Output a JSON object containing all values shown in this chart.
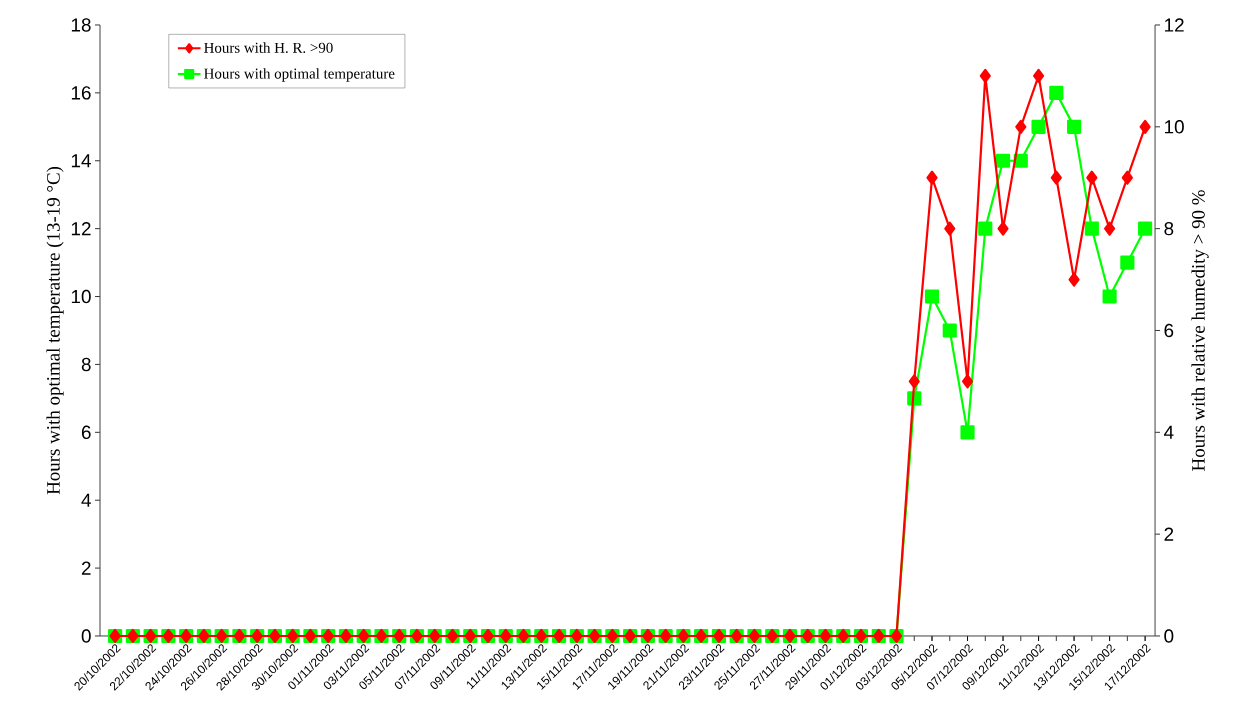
{
  "chart_data": {
    "type": "line",
    "categories": [
      "20/10/2002",
      null,
      "22/10/2002",
      null,
      "24/10/2002",
      null,
      "26/10/2002",
      null,
      "28/10/2002",
      null,
      "30/10/2002",
      null,
      "01/11/2002",
      null,
      "03/11/2002",
      null,
      "05/11/2002",
      null,
      "07/11/2002",
      null,
      "09/11/2002",
      null,
      "11/11/2002",
      null,
      "13/11/2002",
      null,
      "15/11/2002",
      null,
      "17/11/2002",
      null,
      "19/11/2002",
      null,
      "21/11/2002",
      null,
      "23/11/2002",
      null,
      "25/11/2002",
      null,
      "27/11/2002",
      null,
      "29/11/2002",
      null,
      "01/12/2002",
      null,
      "03/12/2002",
      null,
      "05/12/2002",
      null,
      "07/12/2002",
      null,
      "09/12/2002",
      null,
      "11/12/2002",
      null,
      "13/12/2002",
      null,
      "15/12/2002",
      null,
      "17/12/2002"
    ],
    "series": [
      {
        "name": "Hours with H. R. >90",
        "color": "#ff0000",
        "axis": "y2",
        "marker": "diamond",
        "values": [
          0,
          0,
          0,
          0,
          0,
          0,
          0,
          0,
          0,
          0,
          0,
          0,
          0,
          0,
          0,
          0,
          0,
          0,
          0,
          0,
          0,
          0,
          0,
          0,
          0,
          0,
          0,
          0,
          0,
          0,
          0,
          0,
          0,
          0,
          0,
          0,
          0,
          0,
          0,
          0,
          0,
          0,
          0,
          0,
          0,
          5,
          9,
          8,
          5,
          11,
          8,
          10,
          11,
          9,
          7,
          9,
          8,
          9,
          10
        ]
      },
      {
        "name": "Hours with optimal temperature",
        "color": "#00ff00",
        "marker": "square",
        "values": [
          0,
          0,
          0,
          0,
          0,
          0,
          0,
          0,
          0,
          0,
          0,
          0,
          0,
          0,
          0,
          0,
          0,
          0,
          0,
          0,
          0,
          0,
          0,
          0,
          0,
          0,
          0,
          0,
          0,
          0,
          0,
          0,
          0,
          0,
          0,
          0,
          0,
          0,
          0,
          0,
          0,
          0,
          0,
          0,
          0,
          7,
          10,
          9,
          6,
          12,
          14,
          14,
          15,
          16,
          15,
          12,
          10,
          11,
          12
        ]
      }
    ],
    "ylabel": "Hours with optimal temperature (13-19 °C)",
    "y2label": "Hours  with relative humedity > 90 %",
    "ylim": [
      0,
      18
    ],
    "yticks": [
      0,
      2,
      4,
      6,
      8,
      10,
      12,
      14,
      16,
      18
    ],
    "y2lim": [
      0,
      12
    ],
    "y2ticks": [
      0,
      2,
      4,
      6,
      8,
      10,
      12
    ],
    "legend": "top left"
  }
}
